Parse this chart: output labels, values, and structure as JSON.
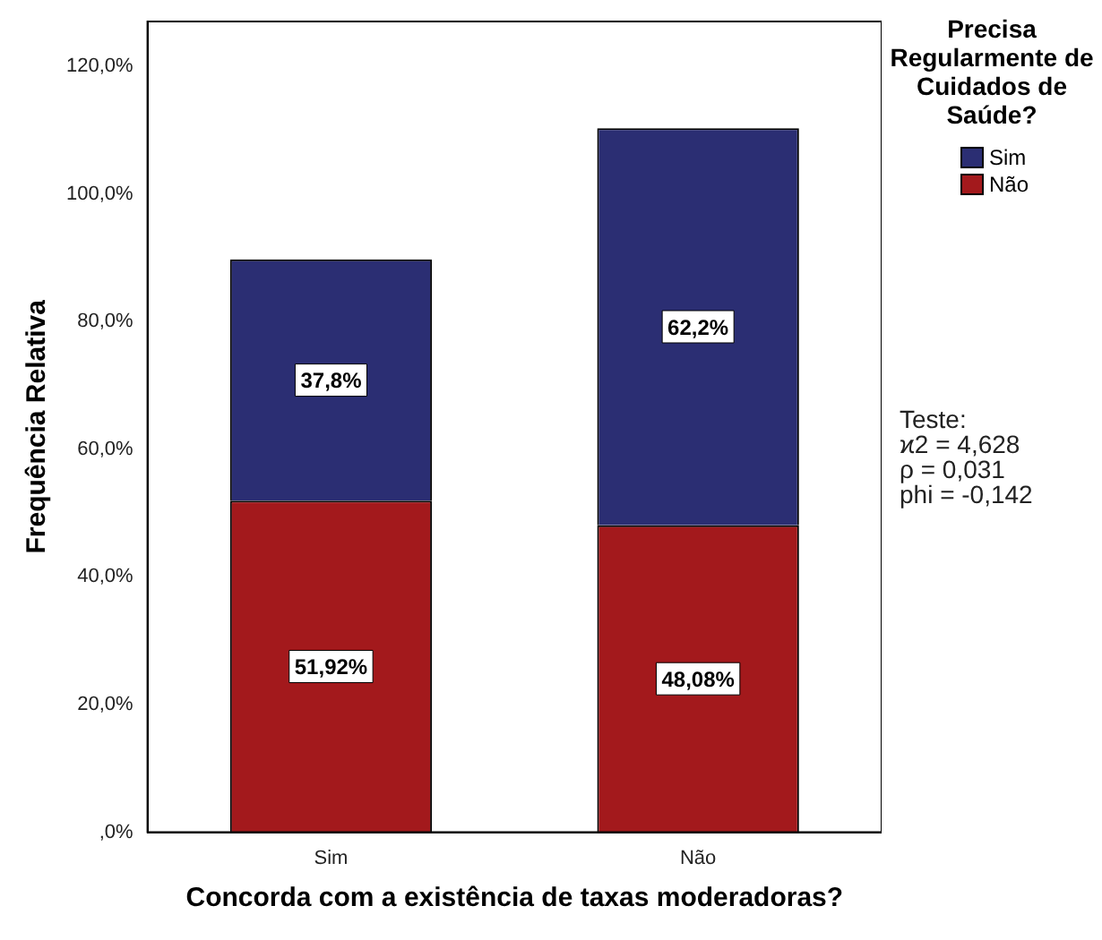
{
  "chart_data": {
    "type": "bar",
    "stacked": true,
    "xlabel": "Concorda com a existência de taxas moderadoras?",
    "ylabel": "Frequência Relativa",
    "legend_title": "Precisa Regularmente de Cuidados de Saúde?",
    "legend": "top right",
    "grid": false,
    "categories": [
      "Sim",
      "Não"
    ],
    "series": [
      {
        "name": "Não",
        "color": "#a3191c",
        "values": [
          51.92,
          48.08
        ],
        "value_labels": [
          "51,92%",
          "48,08%"
        ]
      },
      {
        "name": "Sim",
        "color": "#2b2e73",
        "values": [
          37.8,
          62.2
        ],
        "value_labels": [
          "37,8%",
          "62,2%"
        ]
      }
    ],
    "ylim": [
      0,
      127
    ],
    "yticks": [
      {
        "value": 0,
        "label": ",0%"
      },
      {
        "value": 20,
        "label": "20,0%"
      },
      {
        "value": 40,
        "label": "40,0%"
      },
      {
        "value": 60,
        "label": "60,0%"
      },
      {
        "value": 80,
        "label": "80,0%"
      },
      {
        "value": 100,
        "label": "100,0%"
      },
      {
        "value": 120,
        "label": "120,0%"
      }
    ],
    "annotations": [
      "Teste:",
      "ϰ2 = 4,628",
      "ρ = 0,031",
      "phi = -0,142"
    ]
  }
}
